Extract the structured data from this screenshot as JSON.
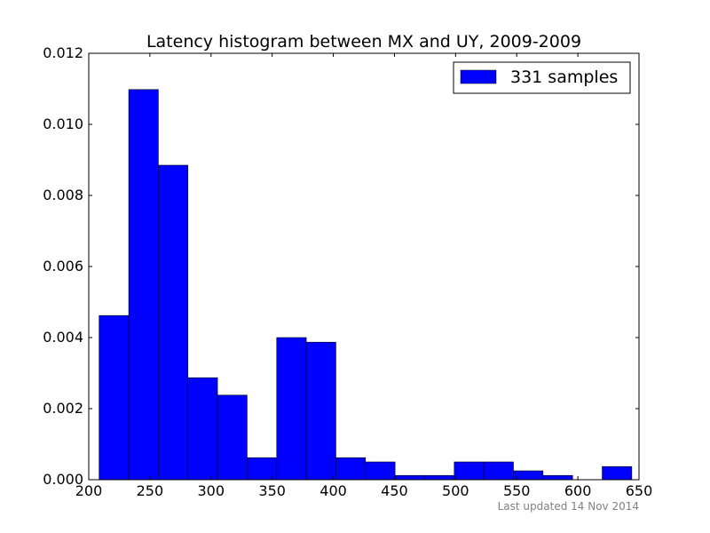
{
  "chart_data": {
    "type": "bar",
    "title": "Latency histogram between MX and UY, 2009-2009",
    "xlabel": "",
    "ylabel": "",
    "xlim": [
      200,
      650
    ],
    "ylim": [
      0,
      0.012
    ],
    "x_ticks": [
      "200",
      "250",
      "300",
      "350",
      "400",
      "450",
      "500",
      "550",
      "600",
      "650"
    ],
    "y_ticks": [
      "0.000",
      "0.002",
      "0.004",
      "0.006",
      "0.008",
      "0.010",
      "0.012"
    ],
    "bin_edges": [
      208.5,
      232.7,
      256.9,
      281.1,
      305.3,
      329.5,
      353.7,
      377.9,
      402.1,
      426.3,
      450.5,
      474.7,
      498.9,
      523.1,
      547.3,
      571.5,
      595.7,
      619.9,
      644.1
    ],
    "values": [
      0.00462,
      0.01098,
      0.00885,
      0.00287,
      0.00238,
      0.00062,
      0.004,
      0.00387,
      0.00062,
      0.0005,
      0.00012,
      0.00012,
      0.0005,
      0.0005,
      0.00025,
      0.00012,
      0.0,
      0.00037
    ],
    "grid": false,
    "legend": {
      "placement": "top-right",
      "label": "331 samples"
    },
    "series_color": "#0000ff",
    "footer": "Last updated 14 Nov 2014"
  }
}
